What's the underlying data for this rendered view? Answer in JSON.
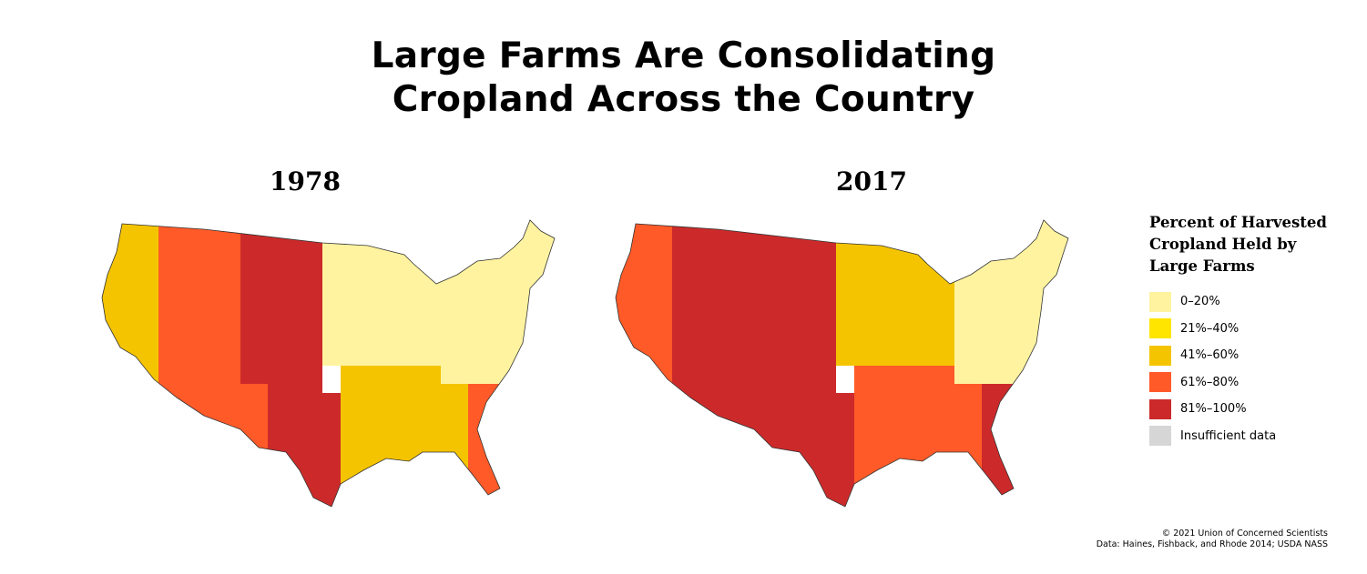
{
  "title": {
    "line1": "Large Farms Are Consolidating",
    "line2": "Cropland Across the Country"
  },
  "maps": [
    {
      "year": "1978",
      "region_colors": {
        "pacific": "#f5c400",
        "mountain_west": "#ff5a28",
        "plains": "#cc2a2a",
        "midwest": "#fff3a0",
        "southwest": "#ff5a28",
        "texas": "#cc2a2a",
        "south": "#f5c400",
        "east": "#fff3a0",
        "florida": "#ff5a28"
      }
    },
    {
      "year": "2017",
      "region_colors": {
        "pacific": "#ff5a28",
        "mountain_west": "#cc2a2a",
        "plains": "#cc2a2a",
        "midwest": "#f5c400",
        "southwest": "#cc2a2a",
        "texas": "#cc2a2a",
        "south": "#ff5a28",
        "east": "#fff3a0",
        "florida": "#cc2a2a"
      }
    }
  ],
  "legend": {
    "title_line1": "Percent of Harvested",
    "title_line2": "Cropland Held by",
    "title_line3": "Large Farms",
    "items": [
      {
        "label": "0–20%",
        "color": "#fff3a0"
      },
      {
        "label": "21%–40%",
        "color": "#ffe500"
      },
      {
        "label": "41%–60%",
        "color": "#f5c400"
      },
      {
        "label": "61%–80%",
        "color": "#ff5a28"
      },
      {
        "label": "81%–100%",
        "color": "#cc2a2a"
      },
      {
        "label": "Insufficient data",
        "color": "#d6d6d6"
      }
    ]
  },
  "credits": {
    "line1": "© 2021 Union of Concerned Scientists",
    "line2": "Data: Haines, Fishback, and Rhode 2014; USDA NASS"
  }
}
